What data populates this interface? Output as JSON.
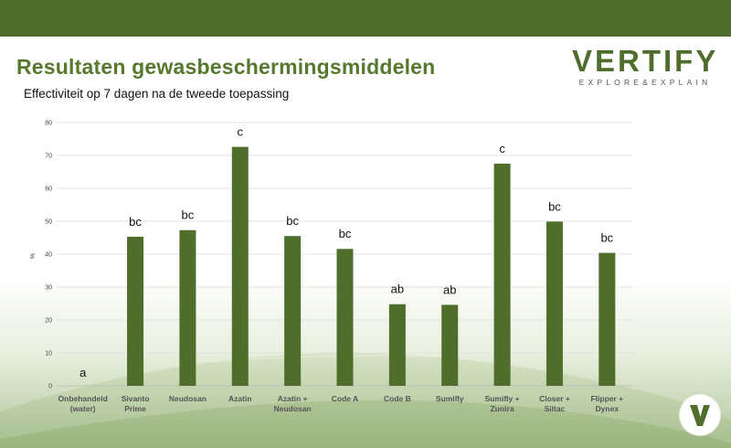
{
  "slide": {
    "title": "Resultaten gewasbeschermingsmiddelen",
    "subtitle": "Effectiviteit op 7 dagen na de tweede toepassing"
  },
  "logo": {
    "word": "VERTIFY",
    "tagline": "EXPLORE&EXPLAIN"
  },
  "colors": {
    "header_bar": "#4f6e2c",
    "title": "#56792e",
    "bar": "#4f6e2c"
  },
  "chart_data": {
    "type": "bar",
    "title": "",
    "xlabel": "",
    "ylabel": "%",
    "ylim": [
      0,
      80
    ],
    "yticks": [
      0,
      10,
      20,
      30,
      40,
      50,
      60,
      70,
      80
    ],
    "grid": true,
    "legend": "none",
    "categories": [
      [
        "Onbehandeld",
        "(water)"
      ],
      [
        "Sivanto",
        "Prime"
      ],
      [
        "Neudosan"
      ],
      [
        "Azatin"
      ],
      [
        "Azatin +",
        "Neudosan"
      ],
      [
        "Code A"
      ],
      [
        "Code B"
      ],
      [
        "Sumifly"
      ],
      [
        "Sumifly +",
        "Zunira"
      ],
      [
        "Closer +",
        "Siltac"
      ],
      [
        "Flipper +",
        "Dynex"
      ]
    ],
    "values": [
      0,
      45.3,
      47.3,
      72.6,
      45.5,
      41.6,
      24.8,
      24.6,
      67.5,
      49.9,
      40.4
    ],
    "significance_labels": [
      "a",
      "bc",
      "bc",
      "c",
      "bc",
      "bc",
      "ab",
      "ab",
      "c",
      "bc",
      "bc"
    ]
  }
}
